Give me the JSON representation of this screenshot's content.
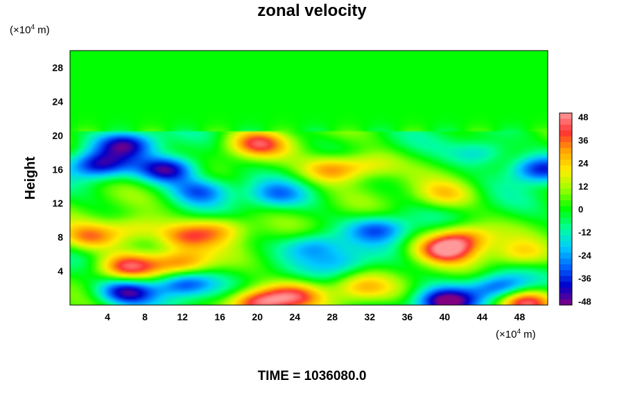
{
  "chart_data": {
    "type": "heatmap",
    "title": "zonal velocity",
    "ylabel": "Height",
    "xlabel": "",
    "x_unit_prefix": "(×10",
    "x_unit_exp": "4",
    "x_unit_suffix": " m)",
    "y_unit_prefix": "(×10",
    "y_unit_exp": "4",
    "y_unit_suffix": " m)",
    "x_range": [
      0,
      51
    ],
    "y_range": [
      0,
      30
    ],
    "x_ticks": [
      4,
      8,
      12,
      16,
      20,
      24,
      28,
      32,
      36,
      40,
      44,
      48
    ],
    "y_ticks": [
      4,
      8,
      12,
      16,
      20,
      24,
      28
    ],
    "colorbar": {
      "range": [
        -50,
        50
      ],
      "ticks": [
        48,
        36,
        24,
        12,
        0,
        -12,
        -24,
        -36,
        -48
      ],
      "colors": [
        "#800080",
        "#0000cc",
        "#0066ff",
        "#00ccff",
        "#00ff99",
        "#00ff00",
        "#99ff00",
        "#ffee00",
        "#ffa500",
        "#ff3333",
        "#ff9999"
      ]
    },
    "background_value": 0,
    "features": [
      {
        "x": 3,
        "y": 16.5,
        "value": -40
      },
      {
        "x": 6,
        "y": 19,
        "value": -38
      },
      {
        "x": 10.5,
        "y": 16,
        "value": -46
      },
      {
        "x": 14,
        "y": 13.5,
        "value": -30
      },
      {
        "x": 20,
        "y": 19,
        "value": 35
      },
      {
        "x": 28,
        "y": 16,
        "value": 32
      },
      {
        "x": 32,
        "y": 16.5,
        "value": 20
      },
      {
        "x": 44,
        "y": 18,
        "value": -22
      },
      {
        "x": 50,
        "y": 16,
        "value": -38
      },
      {
        "x": 40,
        "y": 13,
        "value": 20
      },
      {
        "x": 7,
        "y": 9,
        "value": 24
      },
      {
        "x": 2,
        "y": 8,
        "value": 30
      },
      {
        "x": 12,
        "y": 8,
        "value": 30
      },
      {
        "x": 16,
        "y": 9,
        "value": 25
      },
      {
        "x": 6,
        "y": 4.5,
        "value": 40
      },
      {
        "x": 12,
        "y": 5,
        "value": 32
      },
      {
        "x": 26,
        "y": 7,
        "value": -25
      },
      {
        "x": 29,
        "y": 5,
        "value": -18
      },
      {
        "x": 33,
        "y": 9,
        "value": -30
      },
      {
        "x": 40,
        "y": 6.5,
        "value": 40
      },
      {
        "x": 42,
        "y": 8,
        "value": 32
      },
      {
        "x": 48,
        "y": 6,
        "value": 20
      },
      {
        "x": 6,
        "y": 1.5,
        "value": -45
      },
      {
        "x": 12,
        "y": 2.5,
        "value": -38
      },
      {
        "x": 20,
        "y": 0.3,
        "value": 48
      },
      {
        "x": 24,
        "y": 1.2,
        "value": 32
      },
      {
        "x": 31,
        "y": 2,
        "value": 22
      },
      {
        "x": 40,
        "y": 0.4,
        "value": -48
      },
      {
        "x": 46,
        "y": 2,
        "value": -36
      },
      {
        "x": 48.5,
        "y": 0.5,
        "value": 45
      },
      {
        "x": 22,
        "y": 13,
        "value": -22
      }
    ]
  },
  "time_label": "TIME = 1036080.0"
}
